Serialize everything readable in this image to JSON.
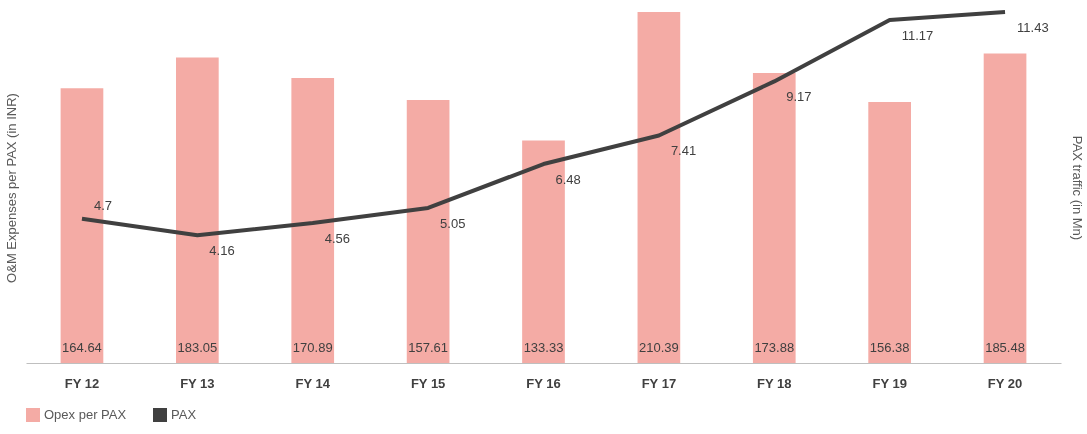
{
  "chart_data": {
    "type": "bar",
    "categories": [
      "FY 12",
      "FY 13",
      "FY 14",
      "FY 15",
      "FY 16",
      "FY 17",
      "FY 18",
      "FY 19",
      "FY 20"
    ],
    "ylabel": "O&M Expenses per PAX (in INR)",
    "y2label": "PAX traffic (in Mn)",
    "series": [
      {
        "name": "Opex per PAX",
        "color": "#f4aba5",
        "values": [
          164.64,
          183.05,
          170.89,
          157.61,
          133.33,
          210.39,
          173.88,
          156.38,
          185.48
        ]
      },
      {
        "name": "PAX",
        "type": "line",
        "axis": "y2",
        "color": "#404040",
        "values": [
          4.7,
          4.16,
          4.56,
          5.05,
          6.48,
          7.41,
          9.17,
          11.17,
          11.43
        ]
      }
    ],
    "data_labels": true,
    "tick_labels": "x",
    "grid": false,
    "legend": "bottom",
    "marker": "none",
    "line_style": "solid"
  }
}
